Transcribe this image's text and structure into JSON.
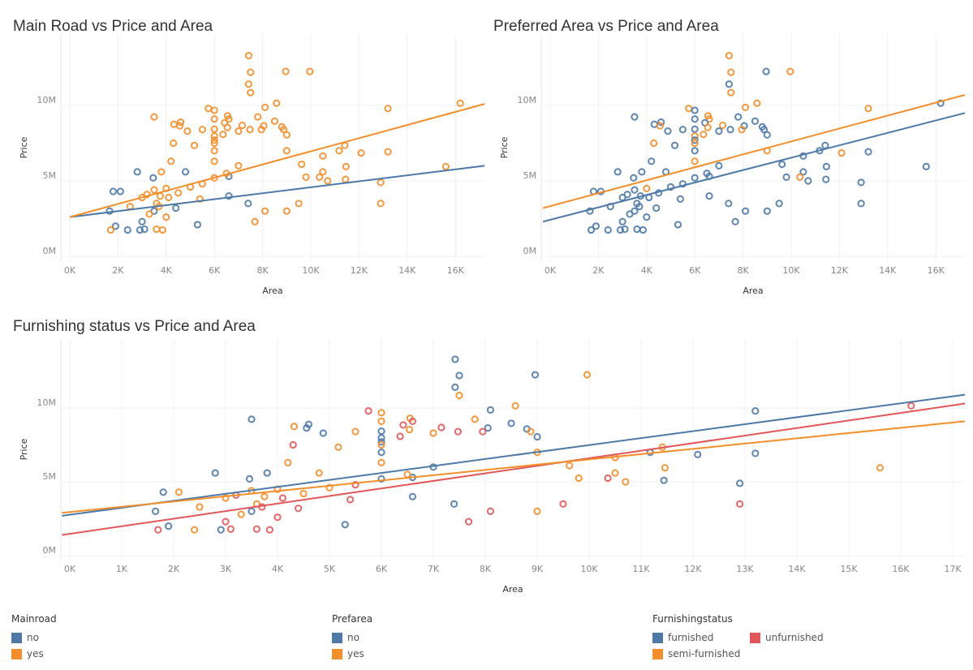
{
  "colors": {
    "blue": "#4e79a7",
    "orange": "#f28e2b",
    "red": "#e15759"
  },
  "titles": [
    "Main Road vs Price and Area",
    "Preferred Area vs Price and Area",
    "Furnishing status vs Price and Area"
  ],
  "legends": [
    {
      "title": "Mainroad",
      "items": [
        {
          "label": "no",
          "color": "#4e79a7"
        },
        {
          "label": "yes",
          "color": "#f28e2b"
        }
      ]
    },
    {
      "title": "Prefarea",
      "items": [
        {
          "label": "no",
          "color": "#4e79a7"
        },
        {
          "label": "yes",
          "color": "#f28e2b"
        }
      ]
    },
    {
      "title": "Furnishingstatus",
      "items": [
        {
          "label": "furnished",
          "color": "#4e79a7"
        },
        {
          "label": "unfurnished",
          "color": "#e15759"
        },
        {
          "label": "semi-furnished",
          "color": "#f28e2b"
        }
      ]
    }
  ],
  "chart_data": [
    {
      "type": "scatter",
      "title": "Main Road vs Price and Area",
      "xlabel": "Area",
      "ylabel": "Price",
      "color_by": "mainroad",
      "xlim": [
        0,
        17200
      ],
      "ylim": [
        0,
        14000000
      ],
      "xticks": [
        "0K",
        "2K",
        "4K",
        "6K",
        "8K",
        "10K",
        "12K",
        "14K",
        "16K"
      ],
      "yticks": [
        "0M",
        "5M",
        "10M"
      ],
      "grid": true,
      "colors": {
        "n": "#4e79a7",
        "y": "#f28e2b"
      },
      "trend_lines": [
        {
          "category": "no",
          "from": [
            0,
            2.6
          ],
          "to": [
            17200,
            6.0
          ]
        },
        {
          "category": "yes",
          "from": [
            0,
            2.6
          ],
          "to": [
            17200,
            10.1
          ]
        }
      ]
    },
    {
      "type": "scatter",
      "title": "Preferred Area vs Price and Area",
      "xlabel": "Area",
      "ylabel": "Price",
      "color_by": "prefarea",
      "xlim": [
        0,
        17200
      ],
      "ylim": [
        0,
        14000000
      ],
      "xticks": [
        "0K",
        "2K",
        "4K",
        "6K",
        "8K",
        "10K",
        "12K",
        "14K",
        "16K"
      ],
      "yticks": [
        "0M",
        "5M",
        "10M"
      ],
      "grid": true,
      "colors": {
        "n": "#4e79a7",
        "y": "#f28e2b"
      },
      "trend_lines": [
        {
          "category": "no",
          "from": [
            -300,
            2.3
          ],
          "to": [
            17200,
            9.5
          ]
        },
        {
          "category": "yes",
          "from": [
            -300,
            3.2
          ],
          "to": [
            17200,
            10.7
          ]
        }
      ]
    },
    {
      "type": "scatter",
      "title": "Furnishing status vs Price and Area",
      "xlabel": "Area",
      "ylabel": "Price",
      "color_by": "furnishingstatus",
      "xlim": [
        0,
        17200
      ],
      "ylim": [
        0,
        14000000
      ],
      "xticks": [
        "0K",
        "1K",
        "2K",
        "3K",
        "4K",
        "5K",
        "6K",
        "7K",
        "8K",
        "9K",
        "10K",
        "11K",
        "12K",
        "13K",
        "14K",
        "15K",
        "16K",
        "17K"
      ],
      "yticks": [
        "0M",
        "5M",
        "10M"
      ],
      "grid": true,
      "colors": {
        "F": "#4e79a7",
        "S": "#f28e2b",
        "U": "#e15759"
      },
      "trend_lines": [
        {
          "category": "furnished",
          "from": [
            -150,
            2.7
          ],
          "to": [
            17200,
            10.9
          ]
        },
        {
          "category": "unfurnished",
          "from": [
            -150,
            1.4
          ],
          "to": [
            17200,
            10.3
          ]
        },
        {
          "category": "semi-furnished",
          "from": [
            -150,
            2.9
          ],
          "to": [
            17200,
            9.1
          ]
        }
      ]
    }
  ],
  "records_fields": [
    "area",
    "price_millions",
    "mainroad",
    "prefarea",
    "furnishingstatus"
  ],
  "records": [
    [
      7420,
      13.3,
      "y",
      "y",
      "F"
    ],
    [
      8960,
      12.25,
      "y",
      "n",
      "F"
    ],
    [
      9960,
      12.25,
      "y",
      "y",
      "S"
    ],
    [
      7500,
      12.2,
      "y",
      "y",
      "F"
    ],
    [
      7420,
      11.41,
      "y",
      "n",
      "F"
    ],
    [
      7500,
      10.85,
      "y",
      "y",
      "S"
    ],
    [
      8580,
      10.15,
      "y",
      "y",
      "S"
    ],
    [
      16200,
      10.15,
      "y",
      "n",
      "U"
    ],
    [
      8100,
      9.87,
      "y",
      "y",
      "F"
    ],
    [
      5750,
      9.8,
      "y",
      "y",
      "U"
    ],
    [
      13200,
      9.8,
      "y",
      "y",
      "F"
    ],
    [
      6000,
      9.68,
      "y",
      "n",
      "S"
    ],
    [
      6550,
      9.31,
      "y",
      "y",
      "S"
    ],
    [
      3500,
      9.24,
      "y",
      "n",
      "F"
    ],
    [
      7800,
      9.24,
      "y",
      "n",
      "S"
    ],
    [
      6000,
      9.1,
      "y",
      "n",
      "S"
    ],
    [
      6600,
      9.1,
      "y",
      "y",
      "U"
    ],
    [
      8500,
      8.96,
      "y",
      "n",
      "F"
    ],
    [
      4600,
      8.89,
      "y",
      "n",
      "F"
    ],
    [
      6420,
      8.85,
      "y",
      "n",
      "U"
    ],
    [
      4320,
      8.75,
      "y",
      "n",
      "S"
    ],
    [
      7155,
      8.68,
      "y",
      "y",
      "U"
    ],
    [
      8050,
      8.65,
      "y",
      "n",
      "F"
    ],
    [
      4560,
      8.65,
      "y",
      "y",
      "F"
    ],
    [
      8800,
      8.58,
      "y",
      "n",
      "F"
    ],
    [
      6540,
      8.54,
      "y",
      "y",
      "S"
    ],
    [
      6000,
      8.43,
      "y",
      "n",
      "F"
    ],
    [
      8875,
      8.4,
      "y",
      "n",
      "S"
    ],
    [
      7950,
      8.4,
      "y",
      "y",
      "U"
    ],
    [
      5500,
      8.4,
      "y",
      "n",
      "S"
    ],
    [
      7475,
      8.4,
      "y",
      "n",
      "U"
    ],
    [
      7000,
      8.3,
      "y",
      "n",
      "S"
    ],
    [
      4880,
      8.3,
      "y",
      "n",
      "F"
    ],
    [
      9000,
      8.05,
      "y",
      "n",
      "F"
    ],
    [
      6360,
      8.08,
      "y",
      "y",
      "U"
    ],
    [
      6000,
      7.98,
      "y",
      "y",
      "F"
    ],
    [
      6000,
      7.7,
      "y",
      "n",
      "F"
    ],
    [
      6000,
      7.5,
      "y",
      "y",
      "S"
    ],
    [
      4300,
      7.5,
      "y",
      "y",
      "U"
    ],
    [
      5170,
      7.35,
      "y",
      "n",
      "S"
    ],
    [
      6000,
      7.0,
      "y",
      "n",
      "F"
    ],
    [
      11410,
      7.35,
      "y",
      "n",
      "S"
    ],
    [
      11175,
      7.0,
      "y",
      "n",
      "F"
    ],
    [
      12090,
      6.85,
      "y",
      "y",
      "F"
    ],
    [
      13200,
      6.93,
      "y",
      "n",
      "F"
    ],
    [
      9000,
      7.0,
      "y",
      "y",
      "S"
    ],
    [
      10500,
      6.65,
      "y",
      "n",
      "S"
    ],
    [
      15600,
      5.95,
      "y",
      "n",
      "S"
    ],
    [
      9620,
      6.1,
      "y",
      "n",
      "S"
    ],
    [
      11460,
      5.95,
      "y",
      "n",
      "S"
    ],
    [
      10500,
      5.6,
      "y",
      "n",
      "S"
    ],
    [
      10360,
      5.25,
      "y",
      "y",
      "U"
    ],
    [
      11440,
      5.1,
      "y",
      "n",
      "F"
    ],
    [
      10700,
      5.0,
      "y",
      "n",
      "S"
    ],
    [
      9800,
      5.25,
      "y",
      "n",
      "S"
    ],
    [
      12900,
      4.9,
      "y",
      "n",
      "F"
    ],
    [
      9500,
      3.5,
      "y",
      "n",
      "U"
    ],
    [
      12900,
      3.5,
      "y",
      "n",
      "U"
    ],
    [
      9000,
      3.0,
      "y",
      "n",
      "S"
    ],
    [
      8100,
      3.0,
      "y",
      "n",
      "U"
    ],
    [
      7680,
      2.3,
      "y",
      "n",
      "U"
    ],
    [
      6000,
      5.2,
      "y",
      "n",
      "F"
    ],
    [
      6600,
      5.3,
      "n",
      "n",
      "F"
    ],
    [
      5300,
      2.1,
      "n",
      "n",
      "F"
    ],
    [
      4800,
      5.6,
      "n",
      "n",
      "S"
    ],
    [
      3460,
      5.2,
      "n",
      "n",
      "F"
    ],
    [
      2800,
      5.6,
      "n",
      "n",
      "F"
    ],
    [
      1800,
      4.3,
      "n",
      "n",
      "F"
    ],
    [
      2100,
      4.3,
      "n",
      "n",
      "S"
    ],
    [
      1650,
      3.0,
      "n",
      "n",
      "F"
    ],
    [
      1900,
      2.0,
      "n",
      "n",
      "F"
    ],
    [
      2400,
      1.75,
      "n",
      "n",
      "S"
    ],
    [
      2910,
      1.75,
      "n",
      "n",
      "F"
    ],
    [
      3100,
      1.8,
      "n",
      "n",
      "U"
    ],
    [
      1700,
      1.75,
      "y",
      "n",
      "U"
    ],
    [
      3600,
      1.8,
      "y",
      "n",
      "U"
    ],
    [
      3850,
      1.75,
      "y",
      "n",
      "U"
    ],
    [
      3000,
      2.3,
      "n",
      "n",
      "U"
    ],
    [
      3500,
      3.0,
      "n",
      "n",
      "F"
    ],
    [
      3600,
      3.5,
      "y",
      "n",
      "S"
    ],
    [
      3750,
      4.0,
      "y",
      "n",
      "S"
    ],
    [
      4000,
      4.5,
      "y",
      "y",
      "S"
    ],
    [
      4100,
      3.9,
      "y",
      "n",
      "U"
    ],
    [
      4500,
      4.2,
      "y",
      "n",
      "S"
    ],
    [
      5000,
      4.6,
      "y",
      "n",
      "S"
    ],
    [
      5500,
      4.8,
      "y",
      "n",
      "U"
    ],
    [
      6000,
      6.3,
      "y",
      "y",
      "S"
    ],
    [
      6500,
      5.5,
      "y",
      "n",
      "S"
    ],
    [
      7000,
      6.0,
      "y",
      "n",
      "F"
    ],
    [
      3200,
      4.1,
      "y",
      "n",
      "U"
    ],
    [
      3300,
      2.8,
      "y",
      "n",
      "S"
    ],
    [
      2500,
      3.3,
      "y",
      "n",
      "S"
    ],
    [
      4400,
      3.2,
      "n",
      "n",
      "U"
    ],
    [
      5400,
      3.8,
      "y",
      "n",
      "U"
    ],
    [
      3800,
      5.6,
      "y",
      "n",
      "F"
    ],
    [
      4200,
      6.3,
      "y",
      "n",
      "S"
    ],
    [
      6600,
      4.0,
      "n",
      "n",
      "F"
    ],
    [
      7400,
      3.5,
      "n",
      "n",
      "F"
    ],
    [
      3000,
      3.9,
      "y",
      "n",
      "S"
    ],
    [
      3500,
      4.4,
      "y",
      "n",
      "S"
    ],
    [
      3700,
      3.3,
      "y",
      "n",
      "U"
    ],
    [
      4000,
      2.6,
      "y",
      "n",
      "U"
    ]
  ]
}
